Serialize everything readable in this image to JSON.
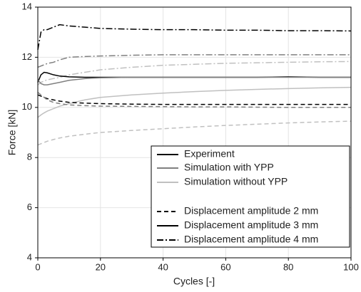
{
  "chart_data": {
    "type": "line",
    "xlabel": "Cycles [-]",
    "ylabel": "Force [kN]",
    "xlim": [
      0,
      100
    ],
    "ylim": [
      4,
      14
    ],
    "xticks": [
      0,
      20,
      40,
      60,
      80,
      100
    ],
    "yticks": [
      4,
      6,
      8,
      10,
      12,
      14
    ],
    "grid": true,
    "legend_position": "lower right",
    "x": [
      0,
      1,
      2,
      3,
      5,
      7,
      10,
      15,
      20,
      30,
      40,
      50,
      60,
      70,
      80,
      90,
      100
    ],
    "legend": [
      {
        "name": "Experiment",
        "color": "#000000",
        "dash": "solid"
      },
      {
        "name": "Simulation with YPP",
        "color": "#808080",
        "dash": "solid"
      },
      {
        "name": "Simulation without YPP",
        "color": "#c0c0c0",
        "dash": "solid"
      },
      {
        "name": "Displacement amplitude 2 mm",
        "color": "#000000",
        "dash": "dashed"
      },
      {
        "name": "Displacement amplitude 3 mm",
        "color": "#000000",
        "dash": "solid"
      },
      {
        "name": "Displacement amplitude 4 mm",
        "color": "#000000",
        "dash": "dashdot"
      }
    ],
    "series": [
      {
        "color": "#000000",
        "dash": "dashdot",
        "values": [
          12.3,
          13.0,
          13.1,
          13.1,
          13.2,
          13.3,
          13.25,
          13.2,
          13.15,
          13.12,
          13.1,
          13.1,
          13.08,
          13.08,
          13.06,
          13.06,
          13.05
        ]
      },
      {
        "color": "#808080",
        "dash": "dashdot",
        "values": [
          11.6,
          11.65,
          11.7,
          11.75,
          11.8,
          11.9,
          12.0,
          12.03,
          12.05,
          12.08,
          12.1,
          12.1,
          12.1,
          12.1,
          12.1,
          12.1,
          12.1
        ]
      },
      {
        "color": "#c0c0c0",
        "dash": "dashdot",
        "values": [
          10.9,
          11.0,
          11.05,
          11.1,
          11.15,
          11.2,
          11.3,
          11.4,
          11.5,
          11.6,
          11.68,
          11.72,
          11.76,
          11.78,
          11.8,
          11.82,
          11.83
        ]
      },
      {
        "color": "#000000",
        "dash": "solid",
        "values": [
          11.0,
          11.3,
          11.4,
          11.38,
          11.3,
          11.25,
          11.22,
          11.2,
          11.2,
          11.2,
          11.2,
          11.2,
          11.2,
          11.2,
          11.22,
          11.2,
          11.2
        ]
      },
      {
        "color": "#808080",
        "dash": "solid",
        "values": [
          11.1,
          10.95,
          10.9,
          10.9,
          10.95,
          11.0,
          11.08,
          11.15,
          11.18,
          11.2,
          11.2,
          11.2,
          11.2,
          11.2,
          11.2,
          11.2,
          11.2
        ]
      },
      {
        "color": "#c0c0c0",
        "dash": "solid",
        "values": [
          9.6,
          9.7,
          9.78,
          9.85,
          9.95,
          10.05,
          10.15,
          10.3,
          10.4,
          10.5,
          10.57,
          10.63,
          10.68,
          10.72,
          10.75,
          10.78,
          10.8
        ]
      },
      {
        "color": "#000000",
        "dash": "dashed",
        "values": [
          10.5,
          10.45,
          10.4,
          10.35,
          10.3,
          10.25,
          10.2,
          10.17,
          10.15,
          10.13,
          10.12,
          10.12,
          10.12,
          10.12,
          10.12,
          10.12,
          10.12
        ]
      },
      {
        "color": "#808080",
        "dash": "dashed",
        "values": [
          10.6,
          10.5,
          10.4,
          10.3,
          10.2,
          10.15,
          10.1,
          10.07,
          10.05,
          10.04,
          10.03,
          10.02,
          10.02,
          10.01,
          10.0,
          10.0,
          10.0
        ]
      },
      {
        "color": "#c0c0c0",
        "dash": "dashed",
        "values": [
          8.5,
          8.55,
          8.6,
          8.65,
          8.72,
          8.78,
          8.85,
          8.93,
          9.0,
          9.08,
          9.15,
          9.22,
          9.28,
          9.33,
          9.38,
          9.42,
          9.45
        ]
      }
    ]
  }
}
